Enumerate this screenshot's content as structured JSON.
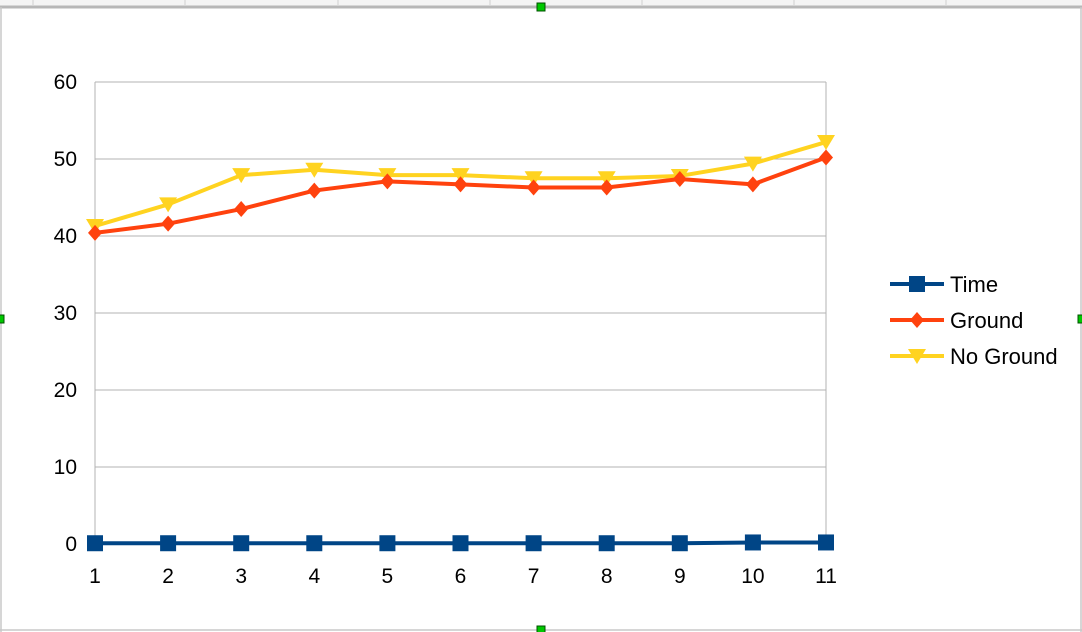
{
  "chart_data": {
    "type": "line",
    "title": "",
    "xlabel": "",
    "ylabel": "",
    "x": [
      1,
      2,
      3,
      4,
      5,
      6,
      7,
      8,
      9,
      10,
      11
    ],
    "x_tick_labels": [
      "1",
      "2",
      "3",
      "4",
      "5",
      "6",
      "7",
      "8",
      "9",
      "10",
      "11"
    ],
    "ylim": [
      0,
      60
    ],
    "y_ticks": [
      0,
      10,
      20,
      30,
      40,
      50,
      60
    ],
    "y_tick_labels": [
      "0",
      "10",
      "20",
      "30",
      "40",
      "50",
      "60"
    ],
    "grid": true,
    "legend_position": "right",
    "series": [
      {
        "name": "Time",
        "color": "#004586",
        "marker": "square",
        "values": [
          0.1,
          0.1,
          0.1,
          0.1,
          0.1,
          0.1,
          0.1,
          0.1,
          0.1,
          0.2,
          0.2
        ]
      },
      {
        "name": "Ground",
        "color": "#ff420e",
        "marker": "diamond",
        "values": [
          40.4,
          41.6,
          43.5,
          45.9,
          47.1,
          46.7,
          46.3,
          46.3,
          47.4,
          46.7,
          50.2
        ]
      },
      {
        "name": "No Ground",
        "color": "#ffd320",
        "marker": "triangle-down",
        "values": [
          41.3,
          44.1,
          47.9,
          48.6,
          47.9,
          47.9,
          47.5,
          47.5,
          47.8,
          49.4,
          52.2
        ]
      }
    ]
  }
}
